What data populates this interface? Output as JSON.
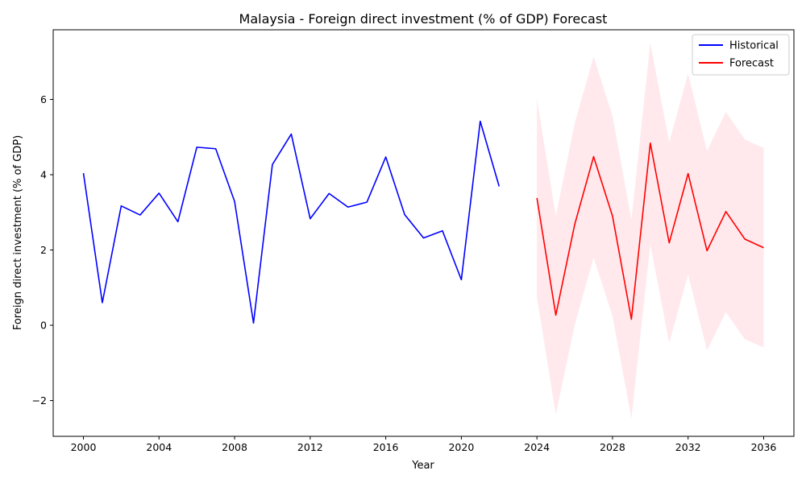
{
  "chart_data": {
    "type": "line",
    "title": "Malaysia - Foreign direct investment (% of GDP) Forecast",
    "xlabel": "Year",
    "ylabel": "Foreign direct investment (% of GDP)",
    "xlim": [
      1998.4,
      2037.6
    ],
    "ylim": [
      -2.95,
      7.85
    ],
    "x_ticks": [
      2000,
      2004,
      2008,
      2012,
      2016,
      2020,
      2024,
      2028,
      2032,
      2036
    ],
    "y_ticks": [
      -2,
      0,
      2,
      4,
      6
    ],
    "y_tick_labels": [
      "−2",
      "0",
      "2",
      "4",
      "6"
    ],
    "grid": false,
    "legend_position": "top-right",
    "series": [
      {
        "name": "Historical",
        "color": "#0000ff",
        "x": [
          2000,
          2001,
          2002,
          2003,
          2004,
          2005,
          2006,
          2007,
          2008,
          2009,
          2010,
          2011,
          2012,
          2013,
          2014,
          2015,
          2016,
          2017,
          2018,
          2019,
          2020,
          2021,
          2022
        ],
        "y": [
          4.04,
          0.6,
          3.17,
          2.93,
          3.51,
          2.75,
          4.73,
          4.69,
          3.29,
          0.06,
          4.27,
          5.08,
          2.83,
          3.5,
          3.14,
          3.27,
          4.47,
          2.94,
          2.32,
          2.51,
          1.21,
          5.42,
          3.69
        ]
      },
      {
        "name": "Forecast",
        "color": "#ff0000",
        "x": [
          2024,
          2025,
          2026,
          2027,
          2028,
          2029,
          2030,
          2031,
          2032,
          2033,
          2034,
          2035,
          2036
        ],
        "y": [
          3.38,
          0.27,
          2.68,
          4.48,
          2.9,
          0.16,
          4.84,
          2.19,
          4.03,
          1.98,
          3.02,
          2.29,
          2.06
        ]
      }
    ],
    "confidence_band": {
      "color": "#ffc0cb",
      "x": [
        2024,
        2025,
        2026,
        2027,
        2028,
        2029,
        2030,
        2031,
        2032,
        2033,
        2034,
        2035,
        2036
      ],
      "lower": [
        0.75,
        -2.37,
        0.01,
        1.8,
        0.24,
        -2.48,
        2.15,
        -0.48,
        1.35,
        -0.67,
        0.35,
        -0.37,
        -0.59
      ],
      "upper": [
        6.01,
        2.9,
        5.37,
        7.14,
        5.56,
        2.8,
        7.5,
        4.86,
        6.69,
        4.63,
        5.67,
        4.94,
        4.71
      ]
    }
  }
}
